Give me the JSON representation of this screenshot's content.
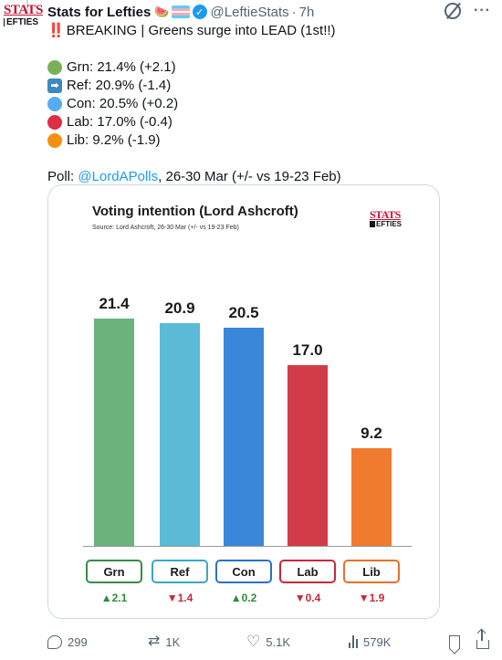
{
  "author": {
    "display_name": "Stats for Lefties",
    "avatar_line1": "STATS",
    "avatar_line2": "EFTIES",
    "handle": "@LeftieStats",
    "separator": "·",
    "time": "7h",
    "emoji_watermelon": "🍉",
    "verified_mark": "✓"
  },
  "tweet": {
    "headline_prefix": "‼️",
    "headline": "BREAKING | Greens surge into LEAD (1st!!)",
    "results": [
      {
        "text": "Grn: 21.4% (+2.1)",
        "color": "#78b159",
        "marker": "circle"
      },
      {
        "text": "Ref: 20.9% (-1.4)",
        "color": "#3b88c3",
        "marker": "arrow"
      },
      {
        "text": "Con: 20.5% (+0.2)",
        "color": "#55acee",
        "marker": "circle"
      },
      {
        "text": "Lab: 17.0% (-0.4)",
        "color": "#dd2e44",
        "marker": "circle"
      },
      {
        "text": "Lib: 9.2% (-1.9)",
        "color": "#f4900c",
        "marker": "circle"
      }
    ],
    "poll_prefix": "Poll: ",
    "poll_link": "@LordAPolls",
    "poll_suffix": ", 26-30 Mar (+/- vs 19-23 Feb)"
  },
  "chart_data": {
    "type": "bar",
    "title": "Voting intention (Lord Ashcroft)",
    "subtitle": "Source: Lord Ashcroft, 26-30 Mar (+/- vs 19-23 Feb)",
    "logo_line1": "STATS",
    "logo_line2": "EFTIES",
    "categories": [
      "Grn",
      "Ref",
      "Con",
      "Lab",
      "Lib"
    ],
    "values": [
      21.4,
      20.9,
      20.5,
      17.0,
      9.2
    ],
    "value_labels": [
      "21.4",
      "20.9",
      "20.5",
      "17.0",
      "9.2"
    ],
    "changes": [
      "▲2.1",
      "▼1.4",
      "▲0.2",
      "▼0.4",
      "▼1.9"
    ],
    "change_colors": [
      "#2e8b3a",
      "#c8283c",
      "#2e8b3a",
      "#c8283c",
      "#c8283c"
    ],
    "colors": [
      "#6bb37d",
      "#5bbad5",
      "#3a86d8",
      "#d23c48",
      "#f07a2e"
    ],
    "ylim": [
      0,
      25
    ],
    "grid": false,
    "legend": "none"
  },
  "actions": {
    "replies": "299",
    "reposts": "1K",
    "likes": "5.1K",
    "views": "579K"
  }
}
